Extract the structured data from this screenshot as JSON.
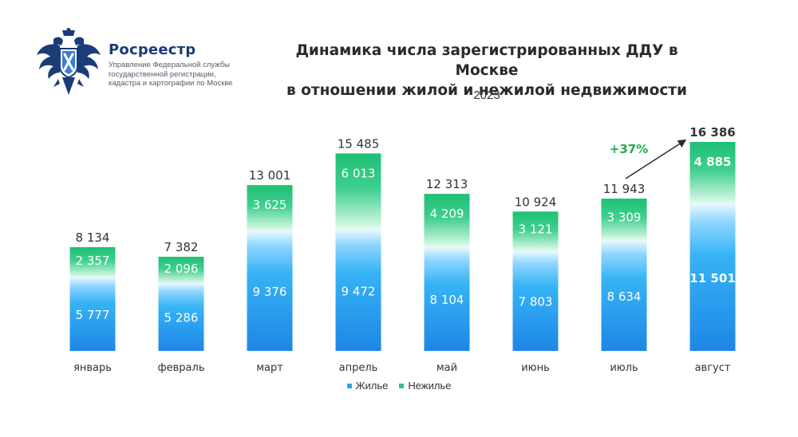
{
  "header": {
    "org_name": "Росреестр",
    "org_subtitle": [
      "Управление Федеральной службы",
      "государственной регистрации,",
      "кадастра и картографии по Москве"
    ],
    "logo_icon": "double-headed-eagle-emblem"
  },
  "chart_data": {
    "type": "bar",
    "stacked": true,
    "title": "Динамика числа зарегистрированных ДДУ в Москве в отношении жилой и нежилой недвижимости",
    "title_lines": [
      "Динамика числа зарегистрированных ДДУ в Москве",
      "в отношении жилой и нежилой недвижимости"
    ],
    "subtitle": "2023",
    "categories": [
      "январь",
      "февраль",
      "март",
      "апрель",
      "май",
      "июнь",
      "июль",
      "август"
    ],
    "series": [
      {
        "name": "Жилье",
        "values": [
          5777,
          5286,
          9376,
          9472,
          8104,
          7803,
          8634,
          11501
        ],
        "color": "#2ea6ea"
      },
      {
        "name": "Нежилье",
        "values": [
          2357,
          2096,
          3625,
          6013,
          4209,
          3121,
          3309,
          4885
        ],
        "color": "#35c18a"
      }
    ],
    "totals": [
      8134,
      7382,
      13001,
      15485,
      12313,
      10924,
      11943,
      16386
    ],
    "total_labels": [
      "8 134",
      "7 382",
      "13 001",
      "15 485",
      "12 313",
      "10 924",
      "11 943",
      "16 386"
    ],
    "residential_labels": [
      "5 777",
      "5 286",
      "9 376",
      "9 472",
      "8 104",
      "7 803",
      "8 634",
      "11 501"
    ],
    "nonresidential_labels": [
      "2 357",
      "2 096",
      "3 625",
      "6 013",
      "4 209",
      "3 121",
      "3 309",
      "4 885"
    ],
    "ylim": [
      0,
      16386
    ],
    "annotation": {
      "text": "+37%",
      "from_category": "июль",
      "to_category": "август",
      "color": "#1fae4b"
    },
    "legend_position": "bottom-center",
    "grid": false
  },
  "legend": {
    "items": [
      {
        "label": "Жилье",
        "color": "#2ea6ea"
      },
      {
        "label": "Нежилье",
        "color": "#35c18a"
      }
    ]
  }
}
